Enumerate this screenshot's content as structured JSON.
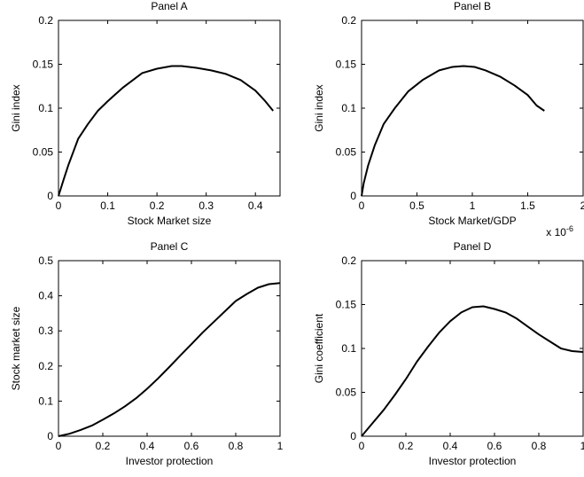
{
  "chart_data": [
    {
      "type": "line",
      "title": "Panel A",
      "xlabel": "Stock Market size",
      "ylabel": "Gini index",
      "xlim": [
        0,
        0.45
      ],
      "ylim": [
        0,
        0.2
      ],
      "xticks": [
        "0",
        "0.1",
        "0.2",
        "0.3",
        "0.4"
      ],
      "xtick_values": [
        0,
        0.1,
        0.2,
        0.3,
        0.4
      ],
      "yticks": [
        "0",
        "0.05",
        "0.1",
        "0.15",
        "0.2"
      ],
      "ytick_values": [
        0,
        0.05,
        0.1,
        0.15,
        0.2
      ],
      "x_multiplier_label": "",
      "grid": false,
      "series": [
        {
          "x": [
            0,
            0.01,
            0.02,
            0.04,
            0.06,
            0.08,
            0.1,
            0.13,
            0.17,
            0.2,
            0.23,
            0.25,
            0.28,
            0.31,
            0.34,
            0.37,
            0.4,
            0.42,
            0.436
          ],
          "y": [
            0,
            0.018,
            0.035,
            0.065,
            0.082,
            0.097,
            0.108,
            0.123,
            0.14,
            0.145,
            0.148,
            0.148,
            0.146,
            0.143,
            0.139,
            0.132,
            0.12,
            0.108,
            0.097
          ]
        }
      ]
    },
    {
      "type": "line",
      "title": "Panel B",
      "xlabel": "Stock Market/GDP",
      "ylabel": "Gini index",
      "xlim": [
        0,
        2
      ],
      "ylim": [
        0,
        0.2
      ],
      "xticks": [
        "0",
        "0.5",
        "1",
        "1.5",
        "2"
      ],
      "xtick_values": [
        0,
        0.5,
        1,
        1.5,
        2
      ],
      "yticks": [
        "0",
        "0.05",
        "0.1",
        "0.15",
        "0.2"
      ],
      "ytick_values": [
        0,
        0.05,
        0.1,
        0.15,
        0.2
      ],
      "x_multiplier_label": "x 10",
      "x_multiplier_exponent": "-6",
      "grid": false,
      "series": [
        {
          "x": [
            0,
            0.02,
            0.06,
            0.12,
            0.2,
            0.3,
            0.42,
            0.55,
            0.7,
            0.82,
            0.92,
            1.02,
            1.12,
            1.25,
            1.38,
            1.5,
            1.58,
            1.65
          ],
          "y": [
            0,
            0.015,
            0.035,
            0.058,
            0.082,
            0.1,
            0.119,
            0.132,
            0.143,
            0.147,
            0.148,
            0.147,
            0.143,
            0.136,
            0.126,
            0.115,
            0.103,
            0.097
          ]
        }
      ]
    },
    {
      "type": "line",
      "title": "Panel C",
      "xlabel": "Investor protection",
      "ylabel": "Stock market size",
      "xlim": [
        0,
        1
      ],
      "ylim": [
        0,
        0.5
      ],
      "xticks": [
        "0",
        "0.2",
        "0.4",
        "0.6",
        "0.8",
        "1"
      ],
      "xtick_values": [
        0,
        0.2,
        0.4,
        0.6,
        0.8,
        1
      ],
      "yticks": [
        "0",
        "0.1",
        "0.2",
        "0.3",
        "0.4",
        "0.5"
      ],
      "ytick_values": [
        0,
        0.1,
        0.2,
        0.3,
        0.4,
        0.5
      ],
      "x_multiplier_label": "",
      "grid": false,
      "series": [
        {
          "x": [
            0,
            0.05,
            0.1,
            0.15,
            0.2,
            0.25,
            0.3,
            0.35,
            0.4,
            0.45,
            0.5,
            0.55,
            0.6,
            0.65,
            0.7,
            0.75,
            0.8,
            0.85,
            0.9,
            0.95,
            1
          ],
          "y": [
            0,
            0.007,
            0.018,
            0.03,
            0.047,
            0.065,
            0.085,
            0.108,
            0.135,
            0.165,
            0.197,
            0.23,
            0.262,
            0.295,
            0.325,
            0.355,
            0.385,
            0.405,
            0.423,
            0.433,
            0.436
          ]
        }
      ]
    },
    {
      "type": "line",
      "title": "Panel D",
      "xlabel": "Investor protection",
      "ylabel": "Gini coefficient",
      "xlim": [
        0,
        1
      ],
      "ylim": [
        0,
        0.2
      ],
      "xticks": [
        "0",
        "0.2",
        "0.4",
        "0.6",
        "0.8",
        "1"
      ],
      "xtick_values": [
        0,
        0.2,
        0.4,
        0.6,
        0.8,
        1
      ],
      "yticks": [
        "0",
        "0.05",
        "0.1",
        "0.15",
        "0.2"
      ],
      "ytick_values": [
        0,
        0.05,
        0.1,
        0.15,
        0.2
      ],
      "x_multiplier_label": "",
      "grid": false,
      "series": [
        {
          "x": [
            0,
            0.05,
            0.1,
            0.15,
            0.2,
            0.25,
            0.3,
            0.35,
            0.4,
            0.45,
            0.5,
            0.55,
            0.6,
            0.65,
            0.7,
            0.75,
            0.8,
            0.85,
            0.9,
            0.95,
            1
          ],
          "y": [
            0,
            0.015,
            0.03,
            0.047,
            0.065,
            0.085,
            0.102,
            0.118,
            0.131,
            0.141,
            0.147,
            0.148,
            0.145,
            0.141,
            0.134,
            0.125,
            0.116,
            0.108,
            0.1,
            0.097,
            0.096
          ]
        }
      ]
    }
  ]
}
